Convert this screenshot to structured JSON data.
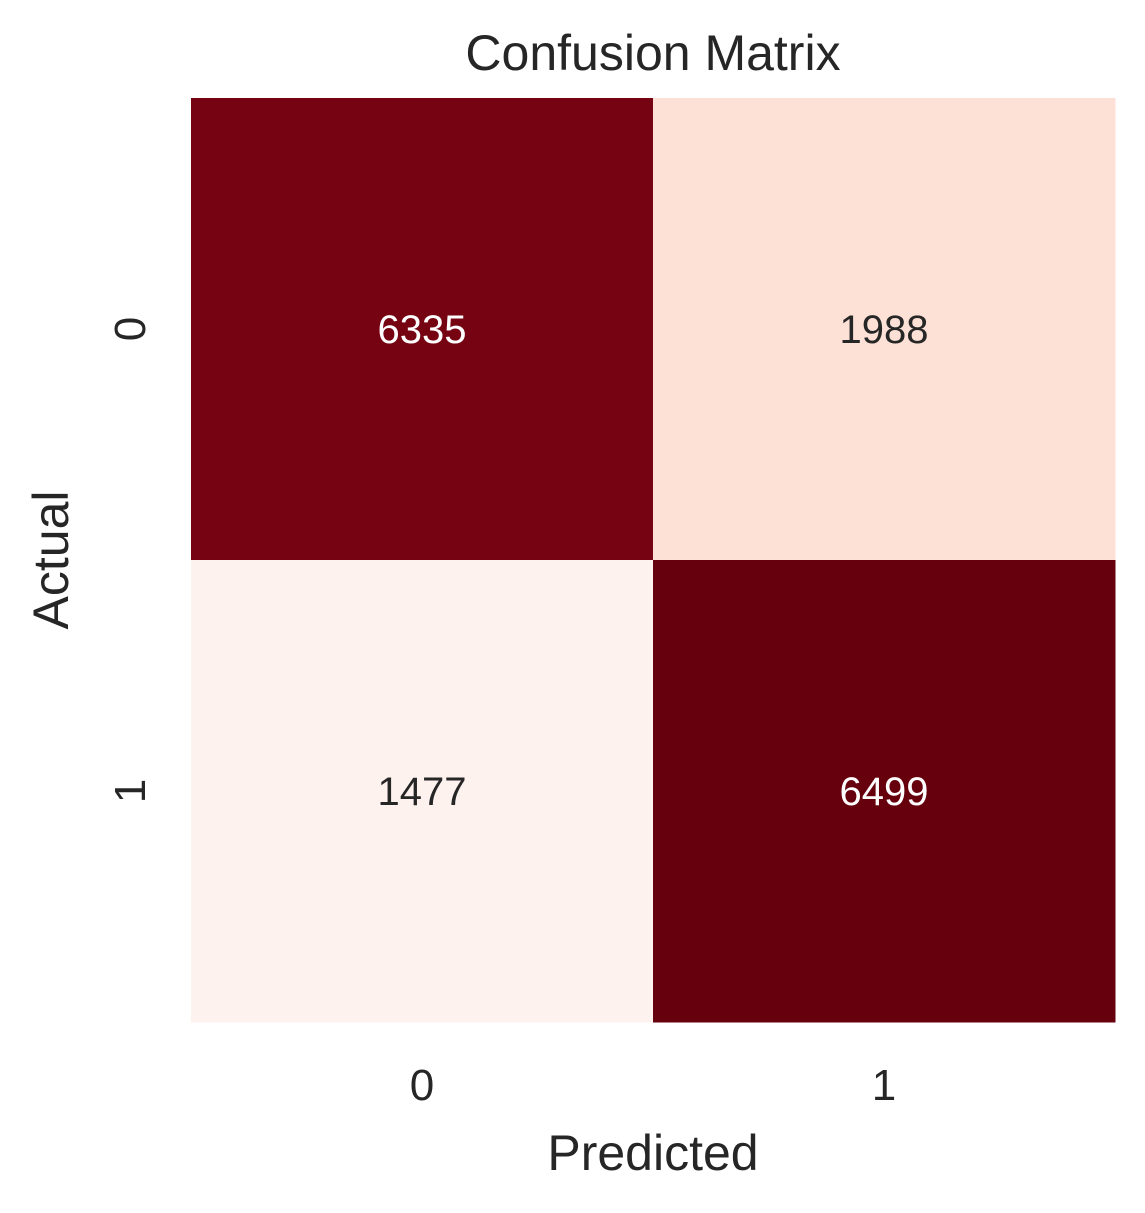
{
  "chart_data": {
    "type": "heatmap",
    "title": "Confusion Matrix",
    "xlabel": "Predicted",
    "ylabel": "Actual",
    "x_categories": [
      "0",
      "1"
    ],
    "y_categories": [
      "0",
      "1"
    ],
    "values": [
      [
        6335,
        1988
      ],
      [
        1477,
        6499
      ]
    ],
    "colormap": "Reds",
    "cell_colors": [
      [
        "#760311",
        "#fde1d7"
      ],
      [
        "#fdf2ee",
        "#67000d"
      ]
    ],
    "annotation_colors": [
      [
        "#ffffff",
        "#262626"
      ],
      [
        "#262626",
        "#ffffff"
      ]
    ],
    "colorbar": false
  }
}
